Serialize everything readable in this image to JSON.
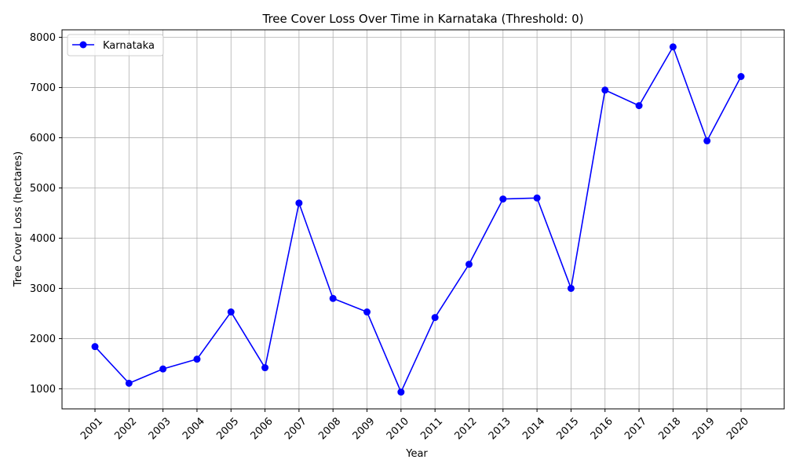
{
  "chart_data": {
    "type": "line",
    "title": "Tree Cover Loss Over Time in Karnataka (Threshold: 0)",
    "xlabel": "Year",
    "ylabel": "Tree Cover Loss (hectares)",
    "categories": [
      "2001",
      "2002",
      "2003",
      "2004",
      "2005",
      "2006",
      "2007",
      "2008",
      "2009",
      "2010",
      "2011",
      "2012",
      "2013",
      "2014",
      "2015",
      "2016",
      "2017",
      "2018",
      "2019",
      "2020"
    ],
    "series": [
      {
        "name": "Karnataka",
        "color": "#0000ff",
        "marker": "circle",
        "values": [
          1840,
          1110,
          1395,
          1590,
          2530,
          1420,
          4700,
          2800,
          2530,
          935,
          2420,
          3480,
          4780,
          4800,
          3000,
          6950,
          6640,
          7810,
          5940,
          7220
        ]
      }
    ],
    "yticks": [
      1000,
      2000,
      3000,
      4000,
      5000,
      6000,
      7000,
      8000
    ],
    "ylim": [
      600,
      8150
    ],
    "grid": true,
    "legend_position": "top-left"
  }
}
